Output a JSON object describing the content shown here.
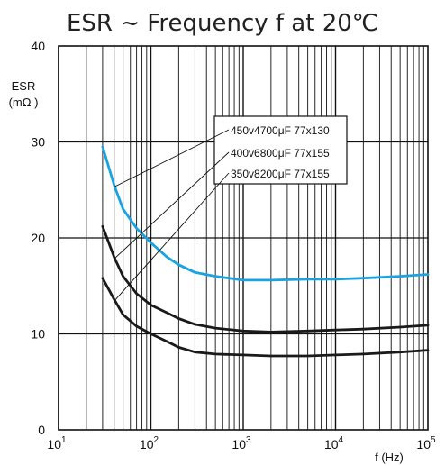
{
  "chart_data": {
    "type": "line",
    "title": "ESR ~ Frequency f  at 20℃",
    "ylabel_line1": "ESR",
    "ylabel_line2": "(mΩ )",
    "xlabel": "f (Hz)",
    "x_scale": "log",
    "xlim": [
      10,
      100000
    ],
    "ylim": [
      0,
      40
    ],
    "grid": true,
    "y_ticks": [
      "0",
      "10",
      "20",
      "30",
      "40"
    ],
    "x_ticks": [
      {
        "base": "10",
        "exp": "1"
      },
      {
        "base": "10",
        "exp": "2"
      },
      {
        "base": "10",
        "exp": "3"
      },
      {
        "base": "10",
        "exp": "4"
      },
      {
        "base": "10",
        "exp": "5"
      }
    ],
    "legend_placement": "top-right",
    "series": [
      {
        "name": "450v4700μF 77x130",
        "color": "#1aa3e0",
        "x": [
          30,
          40,
          50,
          70,
          100,
          150,
          200,
          300,
          500,
          1000,
          2000,
          5000,
          10000,
          20000,
          50000,
          100000
        ],
        "y": [
          29.5,
          25.5,
          23.0,
          21.0,
          19.5,
          18.0,
          17.2,
          16.4,
          16.0,
          15.6,
          15.6,
          15.7,
          15.7,
          15.8,
          16.0,
          16.2
        ]
      },
      {
        "name": "400v6800μF 77x155",
        "color": "#1a1a1a",
        "x": [
          30,
          40,
          50,
          70,
          100,
          150,
          200,
          300,
          500,
          1000,
          2000,
          5000,
          10000,
          20000,
          50000,
          100000
        ],
        "y": [
          21.2,
          18.0,
          16.0,
          14.2,
          13.0,
          12.2,
          11.6,
          11.0,
          10.6,
          10.3,
          10.2,
          10.3,
          10.4,
          10.5,
          10.7,
          10.9
        ]
      },
      {
        "name": "350v8200μF 77x155",
        "color": "#1a1a1a",
        "x": [
          30,
          40,
          50,
          70,
          100,
          150,
          200,
          300,
          500,
          1000,
          2000,
          5000,
          10000,
          20000,
          50000,
          100000
        ],
        "y": [
          15.8,
          13.6,
          12.0,
          10.8,
          10.0,
          9.2,
          8.6,
          8.1,
          7.9,
          7.8,
          7.7,
          7.7,
          7.8,
          7.9,
          8.1,
          8.3
        ]
      }
    ]
  }
}
